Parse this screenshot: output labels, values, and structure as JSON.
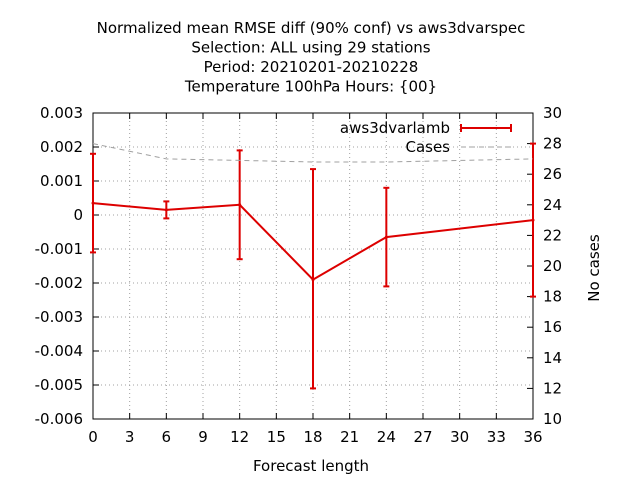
{
  "chart_data": {
    "type": "line",
    "title_lines": [
      "Normalized mean RMSE diff (90% conf) vs aws3dvarspec",
      "Selection: ALL using    29 stations",
      "Period: 20210201-20210228",
      "Temperature 100hPa   Hours: {00}"
    ],
    "xlabel": "Forecast length",
    "ylabel": "",
    "y2label": "No cases",
    "xlim": [
      0,
      36
    ],
    "ylim": [
      -0.006,
      0.003
    ],
    "y2lim": [
      10,
      30
    ],
    "x_ticks": [
      "0",
      "3",
      "6",
      "9",
      "12",
      "15",
      "18",
      "21",
      "24",
      "27",
      "30",
      "33",
      "36"
    ],
    "y_ticks": [
      "0.003",
      "0.002",
      "0.001",
      "0",
      "-0.001",
      "-0.002",
      "-0.003",
      "-0.004",
      "-0.005",
      "-0.006"
    ],
    "y2_ticks": [
      "30",
      "28",
      "26",
      "24",
      "22",
      "20",
      "18",
      "16",
      "14",
      "12",
      "10"
    ],
    "grid": true,
    "legend_position": "top-right",
    "series": [
      {
        "name": "aws3dvarlamb",
        "color": "#dd0000",
        "style": "solid-errorbars",
        "axis": "left",
        "x": [
          0,
          6,
          12,
          18,
          24,
          36
        ],
        "y": [
          0.00035,
          0.00015,
          0.0003,
          -0.0019,
          -0.00065,
          -0.00015
        ],
        "err_low": [
          -0.0011,
          -0.0001,
          -0.0013,
          -0.0051,
          -0.0021,
          -0.0024
        ],
        "err_high": [
          0.0018,
          0.0004,
          0.0019,
          0.00135,
          0.0008,
          0.0021
        ]
      },
      {
        "name": "Cases",
        "color": "#a0a0a0",
        "style": "dashed",
        "axis": "right",
        "x": [
          0,
          6,
          12,
          18,
          24,
          36
        ],
        "y": [
          28,
          27,
          26.9,
          26.8,
          26.8,
          27
        ]
      }
    ]
  }
}
